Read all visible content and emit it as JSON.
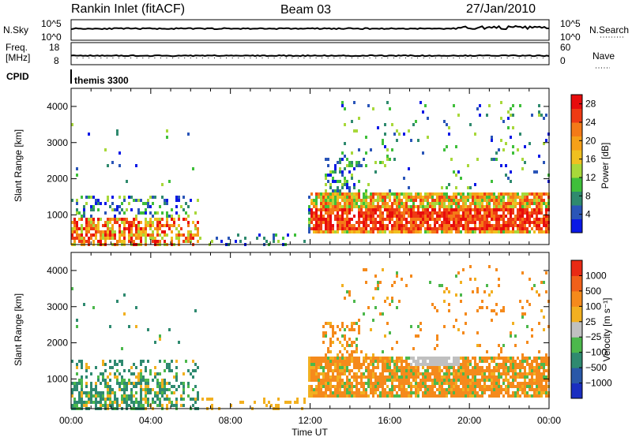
{
  "header": {
    "title": "Rankin Inlet (fitACF)",
    "beam": "Beam 03",
    "date": "27/Jan/2010"
  },
  "panels": {
    "nsky_label": "N.Sky",
    "nsky_ticks": [
      "10^5",
      "10^0"
    ],
    "nsearch_label": "N.Search",
    "nsearch_ticks": [
      "10^5",
      "10^0"
    ],
    "freq_label_1": "Freq.",
    "freq_label_2": "[MHz]",
    "freq_ticks": [
      "18",
      "8"
    ],
    "nave_label": "Nave",
    "nave_ticks": [
      "60",
      "0"
    ],
    "cpid_label": "CPID",
    "cpid_value": "themis 3300"
  },
  "chart_data": [
    {
      "type": "heatmap",
      "name": "power",
      "ylabel": "Slant Range [km]",
      "xlabel": "Time UT",
      "x_ticks": [
        "00:00",
        "04:00",
        "08:00",
        "12:00",
        "16:00",
        "20:00",
        "00:00"
      ],
      "x_range_hours": [
        0,
        24
      ],
      "y_ticks": [
        1000,
        2000,
        3000,
        4000
      ],
      "y_range_km": [
        180,
        4500
      ],
      "colorbar": {
        "label": "Power [dB]",
        "ticks": [
          "4",
          "8",
          "12",
          "16",
          "20",
          "24",
          "28"
        ],
        "colors": [
          "#0a18e6",
          "#2a55b8",
          "#2f8a6e",
          "#3fbf3a",
          "#a8d83a",
          "#f0c020",
          "#f6a018",
          "#f47a18",
          "#ef3a14",
          "#e80c0c"
        ]
      }
    },
    {
      "type": "heatmap",
      "name": "velocity",
      "ylabel": "Slant Range [km]",
      "xlabel": "Time UT",
      "x_ticks": [
        "00:00",
        "04:00",
        "08:00",
        "12:00",
        "16:00",
        "20:00",
        "00:00"
      ],
      "x_range_hours": [
        0,
        24
      ],
      "y_ticks": [
        1000,
        2000,
        3000,
        4000
      ],
      "y_range_km": [
        180,
        4500
      ],
      "colorbar": {
        "label": "Velocity [m s⁻¹]",
        "ticks": [
          "1000",
          "500",
          "100",
          "25",
          "−25",
          "−100",
          "−500",
          "−1000"
        ],
        "colors": [
          "#1a2ec0",
          "#2a58a8",
          "#2f8a70",
          "#4cb84c",
          "#c0c0c0",
          "#f2b020",
          "#f58a1c",
          "#f0601a",
          "#e82a14"
        ]
      }
    }
  ],
  "colors": {
    "frame": "#000000",
    "background": "#ffffff"
  }
}
